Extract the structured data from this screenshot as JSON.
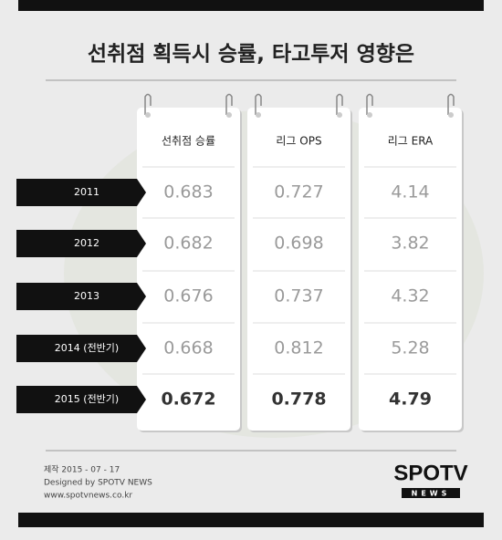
{
  "header": {
    "title": "선취점 획득시 승률, 타고투저 영향은"
  },
  "table": {
    "columns": [
      "선취점 승률",
      "리그 OPS",
      "리그 ERA"
    ],
    "rows": [
      [
        "2011",
        "0.683",
        "0.727",
        "4.14"
      ],
      [
        "2012",
        "0.682",
        "0.698",
        "3.82"
      ],
      [
        "2013",
        "0.676",
        "0.737",
        "4.32"
      ],
      [
        "2014 (전반기)",
        "0.668",
        "0.812",
        "5.28"
      ],
      [
        "2015 (전반기)",
        "0.672",
        "0.778",
        "4.79"
      ]
    ]
  },
  "footer": {
    "lines": [
      "제작 2015 - 07 - 17",
      "Designed by SPOTV NEWS",
      "www.spotvnews.co.kr"
    ]
  },
  "logo": {
    "main": "SPOTV",
    "sub": "NEWS"
  }
}
